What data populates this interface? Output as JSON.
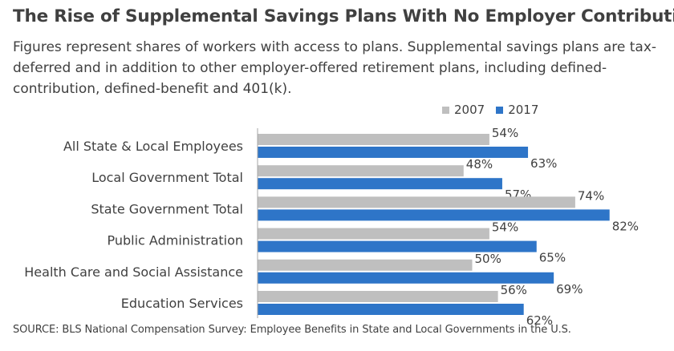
{
  "colors": {
    "series_2007": "#bfbfbf",
    "series_2017": "#2e75c8",
    "axis": "#a6a6a6",
    "text": "#404040"
  },
  "chart_data": {
    "type": "bar",
    "orientation": "horizontal",
    "title": "The Rise of Supplemental Savings Plans With No Employer Contribution",
    "subtitle": "Figures represent shares of workers with access to plans. Supplemental savings plans are tax-deferred and in addition to other employer-offered retirement plans, including defined-contribution, defined-benefit and 401(k).",
    "categories": [
      "All State & Local Employees",
      "Local Government Total",
      "State Government Total",
      "Public Administration",
      "Health Care and Social Assistance",
      "Education Services"
    ],
    "series": [
      {
        "name": "2007",
        "values": [
          54,
          48,
          74,
          54,
          50,
          56
        ]
      },
      {
        "name": "2017",
        "values": [
          63,
          57,
          82,
          65,
          69,
          62
        ]
      }
    ],
    "value_suffix": "%",
    "xlim": [
      0,
      100
    ],
    "grid": false,
    "legend_position": "top-right",
    "source": "SOURCE: BLS National Compensation Survey: Employee Benefits in State and Local Governments in the U.S."
  }
}
